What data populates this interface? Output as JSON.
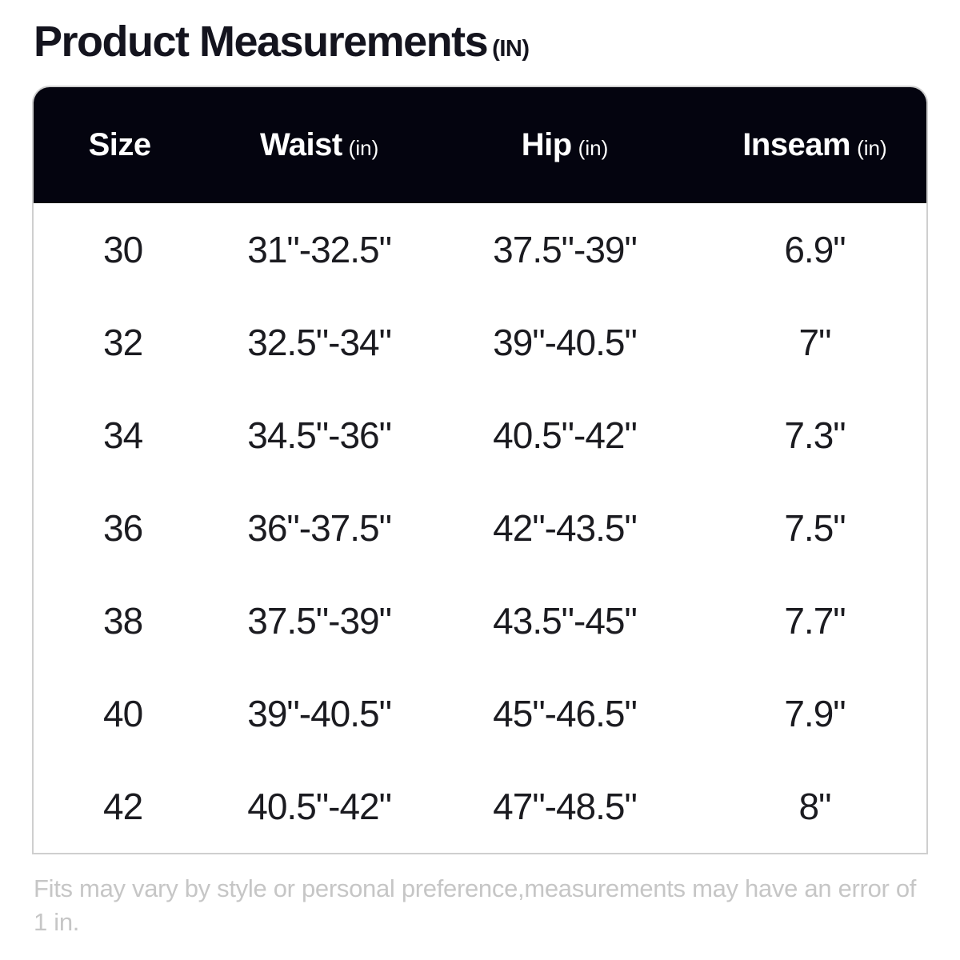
{
  "chart_data": {
    "type": "table",
    "title": "Product Measurements",
    "title_unit": "(IN)",
    "columns": [
      {
        "label": "Size",
        "unit": ""
      },
      {
        "label": "Waist",
        "unit": "(in)"
      },
      {
        "label": "Hip",
        "unit": "(in)"
      },
      {
        "label": "Inseam",
        "unit": "(in)"
      }
    ],
    "rows": [
      [
        "30",
        "31\"-32.5\"",
        "37.5\"-39\"",
        "6.9\""
      ],
      [
        "32",
        "32.5\"-34\"",
        "39\"-40.5\"",
        "7\""
      ],
      [
        "34",
        "34.5\"-36\"",
        "40.5\"-42\"",
        "7.3\""
      ],
      [
        "36",
        "36\"-37.5\"",
        "42\"-43.5\"",
        "7.5\""
      ],
      [
        "38",
        "37.5\"-39\"",
        "43.5\"-45\"",
        "7.7\""
      ],
      [
        "40",
        "39\"-40.5\"",
        "45\"-46.5\"",
        "7.9\""
      ],
      [
        "42",
        "40.5\"-42\"",
        "47\"-48.5\"",
        "8\""
      ]
    ],
    "footnote": "Fits may vary by style or personal preference,measurements may have an error of 1 in.",
    "layout_hints": {
      "header_position": "top",
      "grid": "none"
    }
  },
  "colors": {
    "header_bg": "#04040f",
    "header_text": "#ffffff",
    "card_border": "#cfcfcf",
    "cell_text": "#1b1b20",
    "title_text": "#14141e",
    "footnote_text": "#c6c6c6",
    "page_bg": "#ffffff"
  }
}
